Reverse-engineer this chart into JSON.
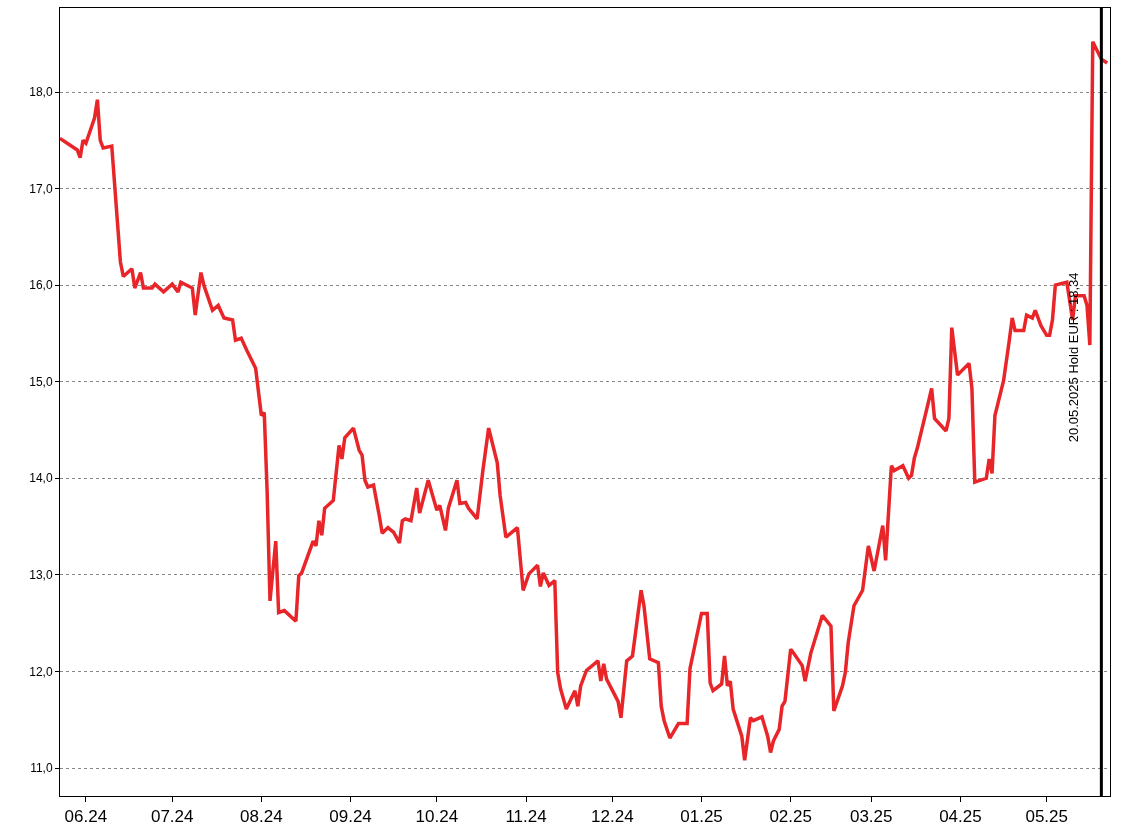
{
  "chart_data": {
    "type": "line",
    "x": [
      "2024-05-23",
      "2024-05-29",
      "2024-05-30",
      "2024-05-31",
      "2024-06-01",
      "2024-06-04",
      "2024-06-05",
      "2024-06-06",
      "2024-06-07",
      "2024-06-10",
      "2024-06-13",
      "2024-06-14",
      "2024-06-17",
      "2024-06-18",
      "2024-06-20",
      "2024-06-21",
      "2024-06-24",
      "2024-06-25",
      "2024-06-28",
      "2024-07-01",
      "2024-07-03",
      "2024-07-04",
      "2024-07-08",
      "2024-07-09",
      "2024-07-11",
      "2024-07-12",
      "2024-07-15",
      "2024-07-17",
      "2024-07-19",
      "2024-07-22",
      "2024-07-23",
      "2024-07-25",
      "2024-07-27",
      "2024-07-30",
      "2024-08-01",
      "2024-08-02",
      "2024-08-03",
      "2024-08-04",
      "2024-08-06",
      "2024-08-07",
      "2024-08-09",
      "2024-08-13",
      "2024-08-14",
      "2024-08-15",
      "2024-08-19",
      "2024-08-20",
      "2024-08-21",
      "2024-08-22",
      "2024-08-23",
      "2024-08-26",
      "2024-08-28",
      "2024-08-29",
      "2024-08-30",
      "2024-09-02",
      "2024-09-04",
      "2024-09-05",
      "2024-09-06",
      "2024-09-07",
      "2024-09-09",
      "2024-09-11",
      "2024-09-12",
      "2024-09-14",
      "2024-09-16",
      "2024-09-18",
      "2024-09-19",
      "2024-09-20",
      "2024-09-22",
      "2024-09-24",
      "2024-09-25",
      "2024-09-28",
      "2024-10-01",
      "2024-10-02",
      "2024-10-04",
      "2024-10-05",
      "2024-10-08",
      "2024-10-09",
      "2024-10-11",
      "2024-10-12",
      "2024-10-15",
      "2024-10-17",
      "2024-10-19",
      "2024-10-22",
      "2024-10-23",
      "2024-10-25",
      "2024-10-29",
      "2024-10-31",
      "2024-11-02",
      "2024-11-05",
      "2024-11-06",
      "2024-11-07",
      "2024-11-09",
      "2024-11-11",
      "2024-11-12",
      "2024-11-13",
      "2024-11-15",
      "2024-11-18",
      "2024-11-19",
      "2024-11-20",
      "2024-11-22",
      "2024-11-26",
      "2024-11-27",
      "2024-11-28",
      "2024-11-29",
      "2024-12-03",
      "2024-12-04",
      "2024-12-06",
      "2024-12-08",
      "2024-12-11",
      "2024-12-12",
      "2024-12-14",
      "2024-12-17",
      "2024-12-18",
      "2024-12-19",
      "2024-12-21",
      "2024-12-23",
      "2024-12-24",
      "2024-12-27",
      "2024-12-28",
      "2025-01-01",
      "2025-01-03",
      "2025-01-04",
      "2025-01-05",
      "2025-01-08",
      "2025-01-09",
      "2025-01-10",
      "2025-01-11",
      "2025-01-12",
      "2025-01-15",
      "2025-01-16",
      "2025-01-18",
      "2025-01-19",
      "2025-01-22",
      "2025-01-24",
      "2025-01-25",
      "2025-01-26",
      "2025-01-28",
      "2025-01-29",
      "2025-01-30",
      "2025-02-01",
      "2025-02-02",
      "2025-02-05",
      "2025-02-06",
      "2025-02-08",
      "2025-02-12",
      "2025-02-15",
      "2025-02-16",
      "2025-02-19",
      "2025-02-20",
      "2025-02-21",
      "2025-02-23",
      "2025-02-26",
      "2025-02-28",
      "2025-03-02",
      "2025-03-05",
      "2025-03-06",
      "2025-03-08",
      "2025-03-09",
      "2025-03-12",
      "2025-03-14",
      "2025-03-15",
      "2025-03-16",
      "2025-03-17",
      "2025-03-20",
      "2025-03-22",
      "2025-03-23",
      "2025-03-27",
      "2025-03-28",
      "2025-03-29",
      "2025-03-31",
      "2025-04-04",
      "2025-04-05",
      "2025-04-06",
      "2025-04-10",
      "2025-04-11",
      "2025-04-12",
      "2025-04-13",
      "2025-04-16",
      "2025-04-18",
      "2025-04-19",
      "2025-04-20",
      "2025-04-23",
      "2025-04-24",
      "2025-04-26",
      "2025-04-27",
      "2025-04-29",
      "2025-05-01",
      "2025-05-02",
      "2025-05-03",
      "2025-05-04",
      "2025-05-08",
      "2025-05-10",
      "2025-05-11",
      "2025-05-14",
      "2025-05-15",
      "2025-05-16",
      "2025-05-17",
      "2025-05-20",
      "2025-05-22"
    ],
    "series": [
      {
        "color": "#e8262a",
        "values": [
          17.52,
          17.4,
          17.32,
          17.5,
          17.47,
          17.73,
          17.92,
          17.5,
          17.42,
          17.44,
          16.24,
          16.09,
          16.17,
          15.97,
          16.13,
          15.97,
          15.97,
          16.01,
          15.93,
          16.01,
          15.93,
          16.03,
          15.97,
          15.69,
          16.13,
          16.0,
          15.74,
          15.79,
          15.66,
          15.64,
          15.43,
          15.45,
          15.32,
          15.14,
          14.65,
          14.68,
          13.87,
          12.73,
          13.35,
          12.61,
          12.63,
          12.52,
          12.99,
          13.02,
          13.35,
          13.3,
          13.56,
          13.41,
          13.69,
          13.77,
          14.34,
          14.2,
          14.42,
          14.52,
          14.29,
          14.24,
          13.98,
          13.91,
          13.93,
          13.61,
          13.43,
          13.49,
          13.44,
          13.33,
          13.56,
          13.58,
          13.56,
          13.9,
          13.64,
          13.98,
          13.67,
          13.72,
          13.46,
          13.69,
          13.98,
          13.74,
          13.75,
          13.69,
          13.58,
          14.08,
          14.52,
          14.16,
          13.82,
          13.39,
          13.49,
          12.84,
          13.01,
          13.1,
          12.88,
          13.02,
          12.89,
          12.94,
          11.99,
          11.82,
          11.61,
          11.8,
          11.64,
          11.85,
          12.01,
          12.11,
          11.9,
          12.08,
          11.92,
          11.69,
          11.52,
          12.11,
          12.16,
          12.84,
          12.68,
          12.13,
          12.09,
          11.64,
          11.49,
          11.31,
          11.41,
          11.46,
          11.46,
          12.03,
          12.6,
          12.6,
          11.88,
          11.8,
          11.87,
          12.16,
          11.85,
          11.9,
          11.61,
          11.33,
          11.08,
          11.52,
          11.49,
          11.53,
          11.33,
          11.16,
          11.28,
          11.4,
          11.64,
          11.69,
          12.23,
          12.19,
          12.06,
          11.9,
          12.19,
          12.58,
          12.47,
          11.59,
          11.85,
          11.99,
          12.3,
          12.68,
          12.84,
          13.3,
          13.04,
          13.51,
          13.15,
          14.13,
          14.08,
          14.13,
          14.0,
          14.03,
          14.21,
          14.31,
          14.68,
          14.93,
          14.62,
          14.49,
          14.62,
          15.56,
          15.07,
          15.19,
          14.93,
          13.96,
          14.0,
          14.2,
          14.05,
          14.65,
          15.01,
          15.43,
          15.66,
          15.53,
          15.53,
          15.69,
          15.66,
          15.74,
          15.58,
          15.48,
          15.48,
          15.64,
          16.0,
          16.03,
          15.64,
          15.89,
          15.89,
          15.79,
          15.38,
          18.52,
          18.34,
          18.3
        ]
      }
    ],
    "xlim": [
      "2024-05-23",
      "2025-05-23"
    ],
    "xticks": [
      {
        "value": "2024-06-01",
        "label": "06.24"
      },
      {
        "value": "2024-07-01",
        "label": "07.24"
      },
      {
        "value": "2024-08-01",
        "label": "08.24"
      },
      {
        "value": "2024-09-01",
        "label": "09.24"
      },
      {
        "value": "2024-10-01",
        "label": "10.24"
      },
      {
        "value": "2024-11-01",
        "label": "11.24"
      },
      {
        "value": "2024-12-01",
        "label": "12.24"
      },
      {
        "value": "2025-01-01",
        "label": "01.25"
      },
      {
        "value": "2025-02-01",
        "label": "02.25"
      },
      {
        "value": "2025-03-01",
        "label": "03.25"
      },
      {
        "value": "2025-04-01",
        "label": "04.25"
      },
      {
        "value": "2025-05-01",
        "label": "05.25"
      }
    ],
    "ylim": [
      10.71,
      18.87
    ],
    "yticks": [
      {
        "value": 11,
        "label": "11,0"
      },
      {
        "value": 12,
        "label": "12,0"
      },
      {
        "value": 13,
        "label": "13,0"
      },
      {
        "value": 14,
        "label": "14,0"
      },
      {
        "value": 15,
        "label": "15,0"
      },
      {
        "value": 16,
        "label": "16,0"
      },
      {
        "value": 17,
        "label": "17,0"
      },
      {
        "value": 18,
        "label": "18,0"
      }
    ],
    "grid": "y",
    "line_style": "solid",
    "ref_lines": [
      {
        "axis": "x",
        "value": "2025-05-20",
        "label": "20.05.2025 Hold EUR : 18,34",
        "color": "#000000"
      }
    ]
  }
}
